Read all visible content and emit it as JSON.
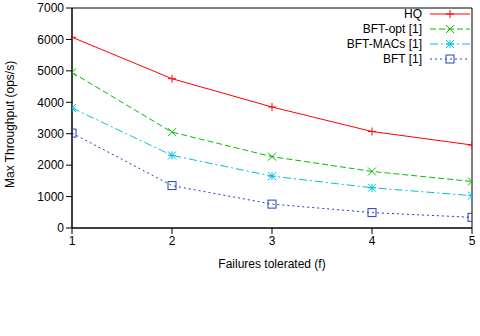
{
  "chart_data": {
    "type": "line",
    "x_label": "Failures tolerated (f)",
    "y_label": "Max Throughput (ops/s)",
    "x": [
      1,
      2,
      3,
      4,
      5
    ],
    "xlim": [
      1,
      5
    ],
    "xticks": [
      1,
      2,
      3,
      4,
      5
    ],
    "ylim": [
      0,
      7000
    ],
    "yticks": [
      0,
      1000,
      2000,
      3000,
      4000,
      5000,
      6000,
      7000
    ],
    "grid": false,
    "legend": "upper right",
    "series": [
      {
        "name": "HQ",
        "color": "#ff0000",
        "marker": "plus",
        "line_style": "solid",
        "values": [
          6070,
          4750,
          3850,
          3070,
          2640
        ]
      },
      {
        "name": "BFT-opt [1]",
        "color": "#00c000",
        "marker": "x",
        "line_style": "dashed",
        "values": [
          4950,
          3050,
          2270,
          1800,
          1480
        ]
      },
      {
        "name": "BFT-MACs [1]",
        "color": "#00c0e0",
        "marker": "star",
        "line_style": "dashdot",
        "values": [
          3820,
          2310,
          1650,
          1280,
          1030
        ]
      },
      {
        "name": "BFT [1]",
        "color": "#2040c0",
        "marker": "square",
        "line_style": "dotted",
        "values": [
          3020,
          1350,
          760,
          490,
          340
        ]
      }
    ]
  }
}
